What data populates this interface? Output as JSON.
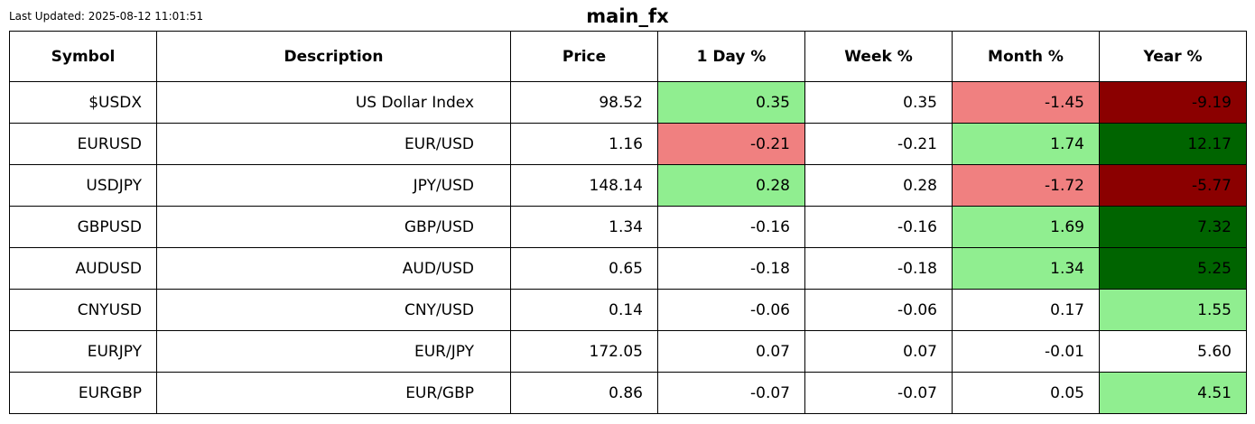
{
  "header": {
    "last_updated": "Last Updated: 2025-08-12 11:01:51",
    "title": "main_fx"
  },
  "colors": {
    "strong_positive": "#006400",
    "positive": "#90ee90",
    "negative": "#f08080",
    "strong_negative": "#8b0000",
    "neutral": "#ffffff"
  },
  "chart_data": {
    "type": "table",
    "title": "main_fx",
    "columns": [
      "Symbol",
      "Description",
      "Price",
      "1 Day %",
      "Week %",
      "Month %",
      "Year %"
    ],
    "rows": [
      {
        "symbol": "$USDX",
        "description": "US Dollar Index",
        "price": "98.52",
        "day": "0.35",
        "week": "0.35",
        "month": "-1.45",
        "year": "-9.19",
        "day_color": "positive",
        "week_color": "neutral",
        "month_color": "negative",
        "year_color": "strong_negative"
      },
      {
        "symbol": "EURUSD",
        "description": "EUR/USD",
        "price": "1.16",
        "day": "-0.21",
        "week": "-0.21",
        "month": "1.74",
        "year": "12.17",
        "day_color": "negative",
        "week_color": "neutral",
        "month_color": "positive",
        "year_color": "strong_positive"
      },
      {
        "symbol": "USDJPY",
        "description": "JPY/USD",
        "price": "148.14",
        "day": "0.28",
        "week": "0.28",
        "month": "-1.72",
        "year": "-5.77",
        "day_color": "positive",
        "week_color": "neutral",
        "month_color": "negative",
        "year_color": "strong_negative"
      },
      {
        "symbol": "GBPUSD",
        "description": "GBP/USD",
        "price": "1.34",
        "day": "-0.16",
        "week": "-0.16",
        "month": "1.69",
        "year": "7.32",
        "day_color": "neutral",
        "week_color": "neutral",
        "month_color": "positive",
        "year_color": "strong_positive"
      },
      {
        "symbol": "AUDUSD",
        "description": "AUD/USD",
        "price": "0.65",
        "day": "-0.18",
        "week": "-0.18",
        "month": "1.34",
        "year": "5.25",
        "day_color": "neutral",
        "week_color": "neutral",
        "month_color": "positive",
        "year_color": "strong_positive"
      },
      {
        "symbol": "CNYUSD",
        "description": "CNY/USD",
        "price": "0.14",
        "day": "-0.06",
        "week": "-0.06",
        "month": "0.17",
        "year": "1.55",
        "day_color": "neutral",
        "week_color": "neutral",
        "month_color": "neutral",
        "year_color": "positive"
      },
      {
        "symbol": "EURJPY",
        "description": "EUR/JPY",
        "price": "172.05",
        "day": "0.07",
        "week": "0.07",
        "month": "-0.01",
        "year": "5.60",
        "day_color": "neutral",
        "week_color": "neutral",
        "month_color": "neutral",
        "year_color": "neutral"
      },
      {
        "symbol": "EURGBP",
        "description": "EUR/GBP",
        "price": "0.86",
        "day": "-0.07",
        "week": "-0.07",
        "month": "0.05",
        "year": "4.51",
        "day_color": "neutral",
        "week_color": "neutral",
        "month_color": "neutral",
        "year_color": "positive"
      }
    ]
  }
}
